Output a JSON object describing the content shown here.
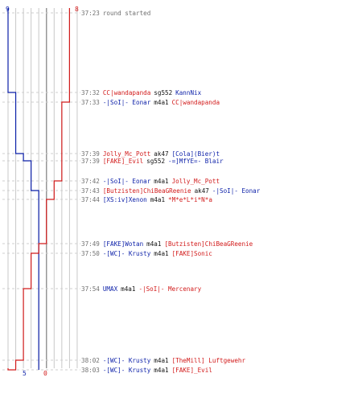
{
  "scores": {
    "blue_start": "9",
    "red_start": "8",
    "blue_end": "5",
    "red_end": "0"
  },
  "colors": {
    "blue_team": "#0b1fa8",
    "red_team": "#d21b1b",
    "grid_line": "#c8c8c8",
    "grid_line_dark": "#909090",
    "time_text": "#707070",
    "weapon_text": "#111111"
  },
  "events": [
    {
      "time": "37:23",
      "message": "round started"
    },
    {
      "time": "37:32",
      "killer": "CC|wandapanda",
      "killer_team": "red",
      "weapon": "sg552",
      "victim": "KannNix",
      "victim_team": "blue"
    },
    {
      "time": "37:33",
      "killer": "-|SoI|- Eonar",
      "killer_team": "blue",
      "weapon": "m4a1",
      "victim": "CC|wandapanda",
      "victim_team": "red"
    },
    {
      "time": "37:39",
      "killer": "Jolly_Mc_Pott",
      "killer_team": "red",
      "weapon": "ak47",
      "victim": "[Cola](Bier)t",
      "victim_team": "blue"
    },
    {
      "time": "37:39",
      "killer": "[FAKE]_Evil",
      "killer_team": "red",
      "weapon": "sg552",
      "victim": "-=]MfYE=- Blair",
      "victim_team": "blue"
    },
    {
      "time": "37:42",
      "killer": "-|SoI|- Eonar",
      "killer_team": "blue",
      "weapon": "m4a1",
      "victim": "Jolly_Mc_Pott",
      "victim_team": "red"
    },
    {
      "time": "37:43",
      "killer": "[Butzisten]ChiBeaGReenie",
      "killer_team": "red",
      "weapon": "ak47",
      "victim": "-|SoI|- Eonar",
      "victim_team": "blue"
    },
    {
      "time": "37:44",
      "killer": "[XS:iv]Xenon",
      "killer_team": "blue",
      "weapon": "m4a1",
      "victim": "*M*e*L*i*N*a",
      "victim_team": "red"
    },
    {
      "time": "37:49",
      "killer": "[FAKE]Wotan",
      "killer_team": "blue",
      "weapon": "m4a1",
      "victim": "[Butzisten]ChiBeaGReenie",
      "victim_team": "red"
    },
    {
      "time": "37:50",
      "killer": "-[WC]- Krusty",
      "killer_team": "blue",
      "weapon": "m4a1",
      "victim": "[FAKE]Sonic",
      "victim_team": "red"
    },
    {
      "time": "37:54",
      "killer": "UMAX",
      "killer_team": "blue",
      "weapon": "m4a1",
      "victim": "-|SoI|- Mercenary",
      "victim_team": "red"
    },
    {
      "time": "38:02",
      "killer": "-[WC]- Krusty",
      "killer_team": "blue",
      "weapon": "m4a1",
      "victim": "[TheMill] Luftgewehr",
      "victim_team": "red"
    },
    {
      "time": "38:03",
      "killer": "-[WC]- Krusty",
      "killer_team": "blue",
      "weapon": "m4a1",
      "victim": "[FAKE]_Evil",
      "victim_team": "red"
    }
  ]
}
